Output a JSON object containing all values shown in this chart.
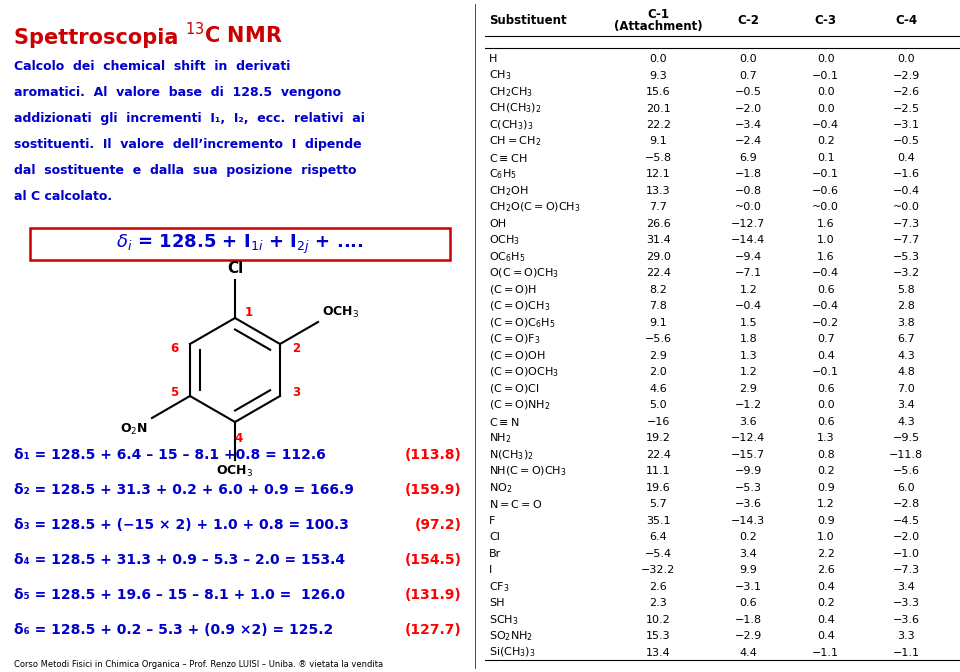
{
  "bg_color": "#ffffff",
  "left_panel_text_color": "#0000cc",
  "title_color": "#cc0000",
  "formula_box_color": "#cc0000",
  "delta_eq_color": "#0000cc",
  "delta_result_color": "#ff0000",
  "footer": "Corso Metodi Fisici in Chimica Organica – Prof. Renzo LUISI – Uniba. ® vietata la vendita",
  "body_lines": [
    "Calcolo  dei  chemical  shift  in  derivati",
    "aromatici.  Al  valore  base  di  128.5  vengono",
    "addizionati  gli  incrementi  I₁,  I₂,  ecc.  relativi  ai",
    "sostituenti.  Il  valore  dell’incremento  I  dipende",
    "dal  sostituente  e  dalla  sua  posizione  rispetto",
    "al C calcolato."
  ],
  "delta_texts": [
    "δ₁ = 128.5 + 6.4 – 15 – 8.1 +0.8 = 112.6",
    "δ₂ = 128.5 + 31.3 + 0.2 + 6.0 + 0.9 = 166.9",
    "δ₃ = 128.5 + (−15 × 2) + 1.0 + 0.8 = 100.3",
    "δ₄ = 128.5 + 31.3 + 0.9 – 5.3 – 2.0 = 153.4",
    "δ₅ = 128.5 + 19.6 – 15 – 8.1 + 1.0 =  126.0",
    "δ₆ = 128.5 + 0.2 – 5.3 + (0.9 ×2) = 125.2"
  ],
  "exp_vals": [
    "(113.8)",
    "(159.9)",
    "(97.2)",
    "(154.5)",
    "(131.9)",
    "(127.7)"
  ],
  "table_data": [
    [
      "H",
      "0.0",
      "0.0",
      "0.0",
      "0.0"
    ],
    [
      "CH$_3$",
      "9.3",
      "0.7",
      "−0.1",
      "−2.9"
    ],
    [
      "CH$_2$CH$_3$",
      "15.6",
      "−0.5",
      "0.0",
      "−2.6"
    ],
    [
      "CH(CH$_3$)$_2$",
      "20.1",
      "−2.0",
      "0.0",
      "−2.5"
    ],
    [
      "C(CH$_3$)$_3$",
      "22.2",
      "−3.4",
      "−0.4",
      "−3.1"
    ],
    [
      "CH$=$CH$_2$",
      "9.1",
      "−2.4",
      "0.2",
      "−0.5"
    ],
    [
      "C$\\equiv$CH",
      "−5.8",
      "6.9",
      "0.1",
      "0.4"
    ],
    [
      "C$_6$H$_5$",
      "12.1",
      "−1.8",
      "−0.1",
      "−1.6"
    ],
    [
      "CH$_2$OH",
      "13.3",
      "−0.8",
      "−0.6",
      "−0.4"
    ],
    [
      "CH$_2$O(C$=$O)CH$_3$",
      "7.7",
      "~0.0",
      "~0.0",
      "~0.0"
    ],
    [
      "OH",
      "26.6",
      "−12.7",
      "1.6",
      "−7.3"
    ],
    [
      "OCH$_3$",
      "31.4",
      "−14.4",
      "1.0",
      "−7.7"
    ],
    [
      "OC$_6$H$_5$",
      "29.0",
      "−9.4",
      "1.6",
      "−5.3"
    ],
    [
      "O(C$=$O)CH$_3$",
      "22.4",
      "−7.1",
      "−0.4",
      "−3.2"
    ],
    [
      "(C$=$O)H",
      "8.2",
      "1.2",
      "0.6",
      "5.8"
    ],
    [
      "(C$=$O)CH$_3$",
      "7.8",
      "−0.4",
      "−0.4",
      "2.8"
    ],
    [
      "(C$=$O)C$_6$H$_5$",
      "9.1",
      "1.5",
      "−0.2",
      "3.8"
    ],
    [
      "(C$=$O)F$_3$",
      "−5.6",
      "1.8",
      "0.7",
      "6.7"
    ],
    [
      "(C$=$O)OH",
      "2.9",
      "1.3",
      "0.4",
      "4.3"
    ],
    [
      "(C$=$O)OCH$_3$",
      "2.0",
      "1.2",
      "−0.1",
      "4.8"
    ],
    [
      "(C$=$O)Cl",
      "4.6",
      "2.9",
      "0.6",
      "7.0"
    ],
    [
      "(C$=$O)NH$_2$",
      "5.0",
      "−1.2",
      "0.0",
      "3.4"
    ],
    [
      "C$\\equiv$N",
      "−16",
      "3.6",
      "0.6",
      "4.3"
    ],
    [
      "NH$_2$",
      "19.2",
      "−12.4",
      "1.3",
      "−9.5"
    ],
    [
      "N(CH$_3$)$_2$",
      "22.4",
      "−15.7",
      "0.8",
      "−11.8"
    ],
    [
      "NH(C$=$O)CH$_3$",
      "11.1",
      "−9.9",
      "0.2",
      "−5.6"
    ],
    [
      "NO$_2$",
      "19.6",
      "−5.3",
      "0.9",
      "6.0"
    ],
    [
      "N$=$C$=$O",
      "5.7",
      "−3.6",
      "1.2",
      "−2.8"
    ],
    [
      "F",
      "35.1",
      "−14.3",
      "0.9",
      "−4.5"
    ],
    [
      "Cl",
      "6.4",
      "0.2",
      "1.0",
      "−2.0"
    ],
    [
      "Br",
      "−5.4",
      "3.4",
      "2.2",
      "−1.0"
    ],
    [
      "I",
      "−32.2",
      "9.9",
      "2.6",
      "−7.3"
    ],
    [
      "CF$_3$",
      "2.6",
      "−3.1",
      "0.4",
      "3.4"
    ],
    [
      "SH",
      "2.3",
      "0.6",
      "0.2",
      "−3.3"
    ],
    [
      "SCH$_3$",
      "10.2",
      "−1.8",
      "0.4",
      "−3.6"
    ],
    [
      "SO$_2$NH$_2$",
      "15.3",
      "−2.9",
      "0.4",
      "3.3"
    ],
    [
      "Si(CH$_3$)$_3$",
      "13.4",
      "4.4",
      "−1.1",
      "−1.1"
    ]
  ]
}
